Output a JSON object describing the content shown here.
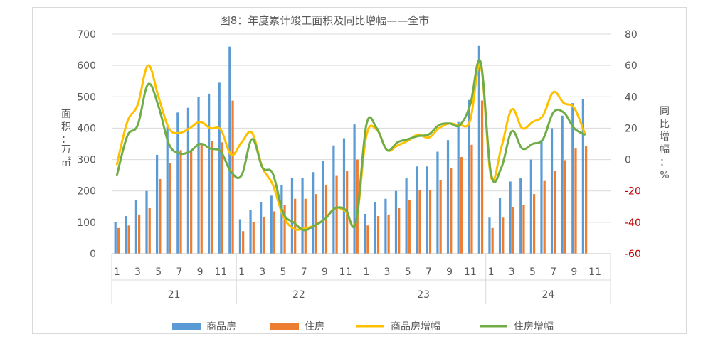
{
  "chart_data": {
    "type": "bar",
    "title": "图8：年度累计竣工面积及同比增幅——全市",
    "ylabel": "面积：万㎡",
    "y2label": "同比增幅：%",
    "ylim": [
      0,
      700
    ],
    "y_ticks": [
      "0",
      "100",
      "200",
      "300",
      "400",
      "500",
      "600",
      "700"
    ],
    "y2lim": [
      -60,
      80
    ],
    "y2_ticks": [
      "-60",
      "-40",
      "-20",
      "0",
      "20",
      "40",
      "60",
      "80"
    ],
    "years": [
      "21",
      "22",
      "23",
      "24"
    ],
    "month_labels": [
      "1",
      "3",
      "5",
      "7",
      "9",
      "11"
    ],
    "months_per_year": [
      12,
      12,
      12,
      11
    ],
    "grid": true,
    "legend_position": "bottom",
    "colors": {
      "bar_commercial": "#5b9bd5",
      "bar_residential": "#ed7d31",
      "line_commercial": "#ffc000",
      "line_residential": "#70ad47"
    },
    "series": [
      {
        "name": "商品房",
        "kind": "bar",
        "values": [
          100,
          120,
          170,
          200,
          315,
          405,
          450,
          465,
          500,
          510,
          545,
          660,
          110,
          140,
          165,
          185,
          218,
          242,
          242,
          260,
          295,
          345,
          368,
          412,
          127,
          165,
          175,
          200,
          240,
          278,
          278,
          325,
          362,
          420,
          490,
          662,
          115,
          178,
          230,
          240,
          300,
          362,
          400,
          440,
          480,
          492,
          null
        ]
      },
      {
        "name": "住房",
        "kind": "bar",
        "values": [
          82,
          90,
          125,
          145,
          238,
          290,
          330,
          330,
          350,
          360,
          355,
          488,
          72,
          102,
          118,
          135,
          155,
          175,
          175,
          190,
          220,
          248,
          265,
          300,
          90,
          120,
          125,
          145,
          172,
          202,
          202,
          235,
          272,
          308,
          347,
          488,
          82,
          115,
          148,
          155,
          190,
          232,
          265,
          298,
          335,
          342,
          null
        ]
      },
      {
        "name": "商品房增幅",
        "kind": "line",
        "axis": "right",
        "values": [
          -3,
          24,
          35,
          60,
          40,
          20,
          17,
          20,
          24,
          20,
          19,
          3,
          11,
          17,
          -5,
          -16,
          -36,
          -44,
          -44,
          -42,
          -38,
          -31,
          -33,
          -40,
          15,
          19,
          6,
          9,
          12,
          16,
          14,
          20,
          23,
          22,
          25,
          60,
          -11,
          8,
          32,
          20,
          24,
          28,
          43,
          36,
          33,
          17,
          null
        ]
      },
      {
        "name": "住房增幅",
        "kind": "line",
        "axis": "right",
        "values": [
          -10,
          15,
          22,
          48,
          34,
          10,
          4,
          5,
          10,
          7,
          5,
          -8,
          -10,
          13,
          -5,
          -9,
          -34,
          -40,
          -45,
          -42,
          -38,
          -31,
          -32,
          -40,
          22,
          20,
          6,
          11,
          13,
          15,
          16,
          22,
          23,
          22,
          35,
          62,
          -9,
          -5,
          18,
          7,
          10,
          13,
          30,
          30,
          20,
          16,
          null
        ]
      }
    ]
  }
}
